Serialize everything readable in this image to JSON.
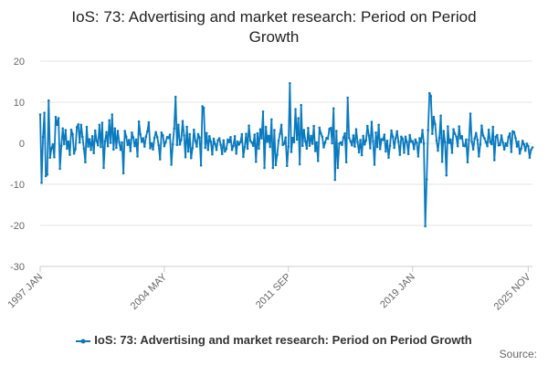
{
  "chart_data": {
    "type": "line",
    "title": "IoS: 73: Advertising and market research: Period on Period Growth",
    "title_lines": [
      "IoS: 73: Advertising and market research: Period on Period",
      "Growth"
    ],
    "xlabel": "",
    "ylabel": "",
    "ylim": [
      -30,
      20
    ],
    "yticks": [
      20,
      10,
      0,
      -10,
      -20,
      -30
    ],
    "x_tick_labels": [
      "1997 JAN",
      "2004 MAY",
      "2011 SEP",
      "2019 JAN",
      "2025 NOV"
    ],
    "x_tick_index": [
      0,
      88,
      176,
      264,
      346
    ],
    "grid": "horizontal",
    "legend_position": "bottom",
    "series": [
      {
        "name": "IoS: 73: Advertising and market research: Period on Period Growth",
        "color": "#0a7abf",
        "start": "1997 JAN",
        "frequency": "monthly",
        "values": [
          7.0,
          -9.6,
          1.5,
          7.4,
          -8.0,
          -7.6,
          10.4,
          -3.5,
          -1.2,
          -0.3,
          -3.4,
          6.4,
          4.5,
          6.1,
          -6.2,
          -0.6,
          3.6,
          -0.2,
          3.2,
          -1.3,
          0.4,
          -2.8,
          3.3,
          2.2,
          -2.5,
          -1.4,
          3.9,
          4.6,
          0.2,
          4.5,
          1.6,
          -1.3,
          -4.6,
          4.0,
          -0.8,
          1.0,
          -1.6,
          1.7,
          -2.4,
          3.1,
          0.6,
          -0.5,
          4.5,
          -0.9,
          5.0,
          -6.0,
          0.5,
          2.7,
          -0.7,
          5.6,
          0.1,
          7.0,
          -1.5,
          3.6,
          -1.1,
          3.0,
          0.3,
          -1.6,
          0.2,
          -7.3,
          3.0,
          1.6,
          -0.4,
          0.8,
          -1.9,
          2.6,
          1.4,
          -0.7,
          0.9,
          -3.2,
          5.3,
          2.2,
          0.4,
          1.2,
          -0.8,
          1.6,
          2.9,
          5.1,
          -1.2,
          0.0,
          -1.5,
          1.3,
          2.7,
          1.5,
          -0.5,
          -3.9,
          2.6,
          1.9,
          -0.7,
          0.3,
          1.5,
          1.3,
          2.1,
          -5.2,
          -0.3,
          3.6,
          11.3,
          -0.4,
          4.5,
          -0.3,
          0.8,
          5.4,
          1.9,
          -3.4,
          4.0,
          -2.0,
          2.2,
          -3.6,
          -1.2,
          3.3,
          0.6,
          -0.8,
          2.2,
          1.4,
          -5.4,
          9.0,
          8.6,
          -1.1,
          2.5,
          -1.6,
          1.7,
          0.4,
          -2.7,
          1.1,
          -0.2,
          -1.6,
          0.7,
          1.2,
          -0.4,
          -2.6,
          0.7,
          -2.0,
          -1.4,
          0.9,
          0.3,
          1.5,
          -1.6,
          -0.6,
          1.7,
          -2.5,
          0.4,
          -0.3,
          0.3,
          2.2,
          -3.3,
          -0.9,
          2.3,
          -1.3,
          4.3,
          0.6,
          0.2,
          -0.6,
          2.1,
          -4.5,
          2.4,
          -1.3,
          3.4,
          1.2,
          7.7,
          -6.0,
          4.0,
          0.4,
          1.8,
          -0.9,
          5.8,
          -6.0,
          3.2,
          -5.3,
          -2.8,
          0.6,
          2.3,
          4.5,
          -0.4,
          -0.1,
          1.4,
          -5.5,
          -0.8,
          14.6,
          -2.1,
          1.3,
          0.3,
          8.3,
          0.9,
          6.1,
          -5.1,
          9.3,
          -0.6,
          3.2,
          0.5,
          -1.3,
          3.7,
          -0.6,
          1.8,
          -0.1,
          4.2,
          -1.9,
          0.2,
          -4.3,
          3.8,
          2.4,
          1.6,
          -1.0,
          0.2,
          1.3,
          1.1,
          3.5,
          3.7,
          0.0,
          8.5,
          -8.9,
          3.0,
          -6.0,
          -0.1,
          0.2,
          -0.4,
          1.4,
          2.4,
          -4.6,
          11.1,
          1.3,
          0.5,
          -0.5,
          1.9,
          -0.8,
          3.4,
          0.3,
          -2.2,
          0.8,
          -2.9,
          1.8,
          -0.3,
          0.7,
          4.2,
          1.9,
          -1.2,
          5.2,
          0.5,
          -5.2,
          2.6,
          -0.9,
          4.5,
          -1.4,
          1.0,
          0.8,
          2.1,
          -2.0,
          0.6,
          -3.5,
          -0.6,
          3.1,
          1.6,
          -1.1,
          1.2,
          2.9,
          0.4,
          -2.8,
          1.6,
          1.1,
          -2.3,
          1.6,
          0.3,
          -2.6,
          2.0,
          0.4,
          0.5,
          -1.4,
          0.9,
          0.1,
          -3.2,
          1.2,
          0.3,
          3.2,
          -0.1,
          -20.2,
          -8.8,
          3.2,
          12.2,
          11.5,
          2.3,
          6.4,
          4.6,
          0.7,
          -1.8,
          1.3,
          6.7,
          -4.5,
          3.0,
          0.3,
          -7.8,
          4.1,
          0.1,
          0.9,
          -2.3,
          3.4,
          2.3,
          1.6,
          -0.7,
          4.1,
          1.2,
          1.7,
          -0.6,
          -0.7,
          0.9,
          -4.6,
          0.8,
          7.2,
          0.4,
          -1.5,
          1.1,
          2.5,
          0.8,
          -3.2,
          -0.3,
          4.3,
          1.9,
          1.2,
          0.3,
          -0.7,
          3.3,
          0.3,
          -0.2,
          4.0,
          -4.1,
          1.6,
          2.0,
          -0.5,
          -0.4,
          1.9,
          0.2,
          -1.5,
          0.0,
          -0.6,
          1.5,
          2.4,
          -2.1,
          2.9,
          2.7,
          1.3,
          -0.8,
          0.4,
          -2.5,
          -1.3,
          0.6,
          -0.3,
          -1.8,
          -0.1,
          -0.7,
          -3.5,
          -1.6,
          -1.0
        ]
      }
    ]
  },
  "legend": {
    "label": "IoS: 73: Advertising and market research: Period on Period Growth"
  },
  "source_label": "Source:"
}
